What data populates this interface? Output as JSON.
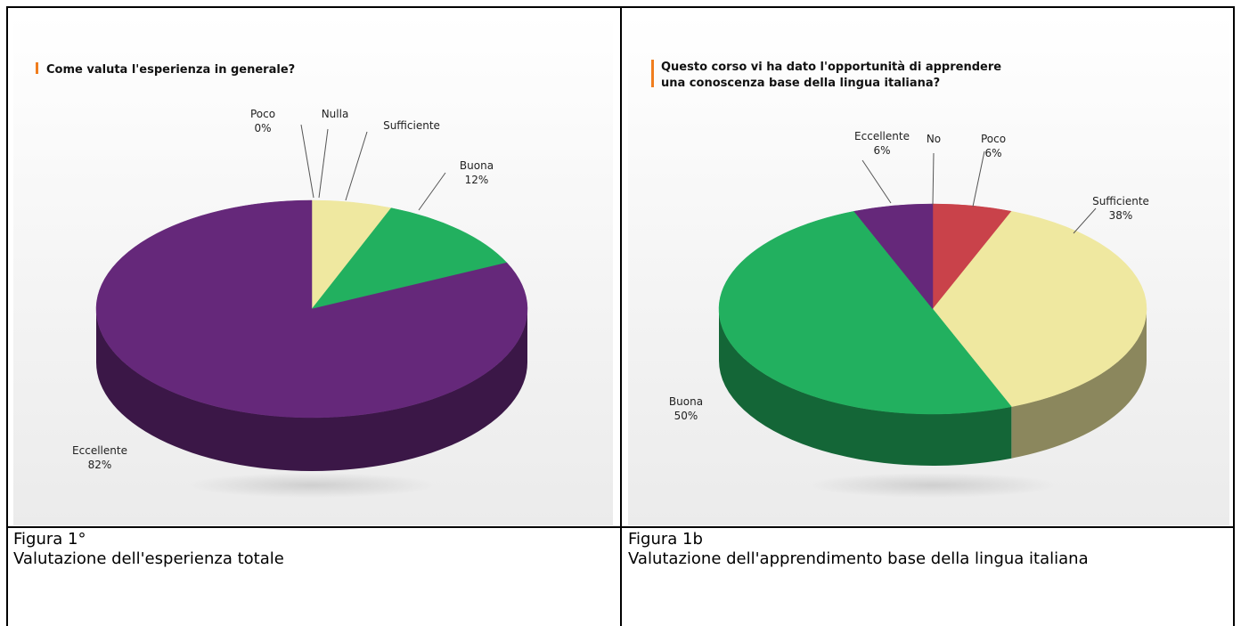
{
  "chart_data": [
    {
      "type": "pie",
      "title": [
        "Come valuta l'esperienza in generale?"
      ],
      "categories": [
        "Poco",
        "Nulla",
        "Sufficiente",
        "Buona",
        "Eccellente"
      ],
      "values": [
        0,
        0,
        6,
        12,
        82
      ],
      "value_labels": [
        "0%",
        null,
        null,
        "12%",
        "82%"
      ],
      "colors": [
        "#c9424a",
        "#8a8a8a",
        "#efe8a0",
        "#22b05f",
        "#65287a"
      ]
    },
    {
      "type": "pie",
      "title": [
        "Questo corso vi ha dato l'opportunità di apprendere",
        "una conoscenza base della lingua italiana?"
      ],
      "categories": [
        "No",
        "Poco",
        "Sufficiente",
        "Buona",
        "Eccellente"
      ],
      "values": [
        0,
        6,
        38,
        50,
        6
      ],
      "value_labels": [
        null,
        "6%",
        "38%",
        "50%",
        "6%"
      ],
      "colors": [
        "#8a8a8a",
        "#c9424a",
        "#efe8a0",
        "#22b05f",
        "#65287a"
      ]
    }
  ],
  "captions": [
    {
      "figure": "Figura 1°",
      "text": "Valutazione dell'esperienza totale"
    },
    {
      "figure": "Figura 1b",
      "text": "Valutazione dell'apprendimento base della lingua italiana"
    }
  ]
}
